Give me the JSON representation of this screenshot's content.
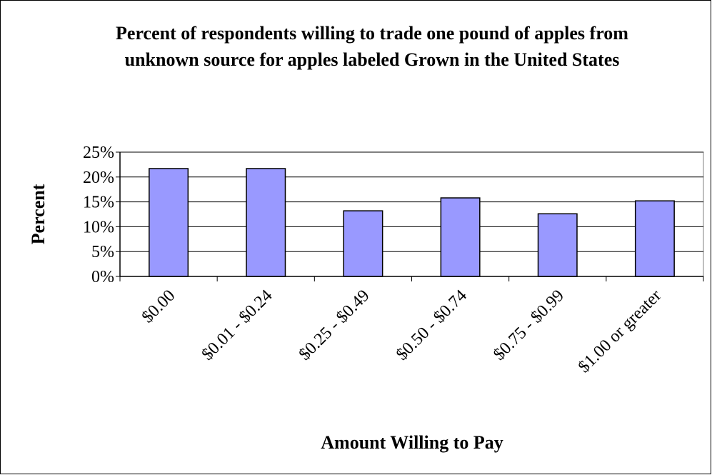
{
  "chart_data": {
    "type": "bar",
    "title": "Percent of respondents willing to trade one pound of apples from unknown source for apples labeled Grown in the United States",
    "x_label": "Amount Willing to Pay",
    "y_label": "Percent",
    "categories": [
      "$0.00",
      "$0.01 - $0.24",
      "$0.25 - $0.49",
      "$0.50 - $0.74",
      "$0.75 - $0.99",
      "$1.00 or greater"
    ],
    "values": [
      21.7,
      21.7,
      13.2,
      15.8,
      12.6,
      15.2
    ],
    "color": "#9999ff",
    "ylim": [
      0,
      25
    ],
    "yticks": [
      {
        "value": 0,
        "label": "0%"
      },
      {
        "value": 5,
        "label": "5%"
      },
      {
        "value": 10,
        "label": "10%"
      },
      {
        "value": 15,
        "label": "15%"
      },
      {
        "value": 20,
        "label": "20%"
      },
      {
        "value": 25,
        "label": "25%"
      }
    ],
    "grid": true
  }
}
